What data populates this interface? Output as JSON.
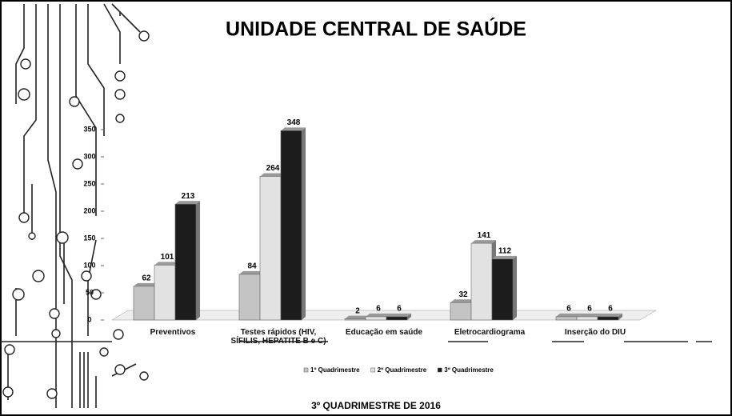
{
  "chart_data": {
    "type": "bar",
    "title": "UNIDADE CENTRAL DE SAÚDE",
    "subtitle": "3º QUADRIMESTRE DE 2016",
    "categories": [
      "Preventivos",
      "Testes rápidos (HIV, SÍFILIS, HEPATITE B e C)",
      "Educação em saúde",
      "Eletrocardiograma",
      "Inserção do DIU"
    ],
    "series": [
      {
        "name": "1º Quadrimestre",
        "color": "#c4c4c4",
        "values": [
          62,
          84,
          2,
          32,
          6
        ]
      },
      {
        "name": "2º Quadrimestre",
        "color": "#e2e2e2",
        "values": [
          101,
          264,
          6,
          141,
          6
        ]
      },
      {
        "name": "3º Quadrimestre",
        "color": "#1c1c1c",
        "values": [
          213,
          348,
          6,
          112,
          6
        ]
      }
    ],
    "ylim": [
      0,
      350
    ],
    "yticks": [
      0,
      50,
      100,
      150,
      200,
      250,
      300,
      350
    ],
    "grid": false,
    "legend": "bottom"
  }
}
